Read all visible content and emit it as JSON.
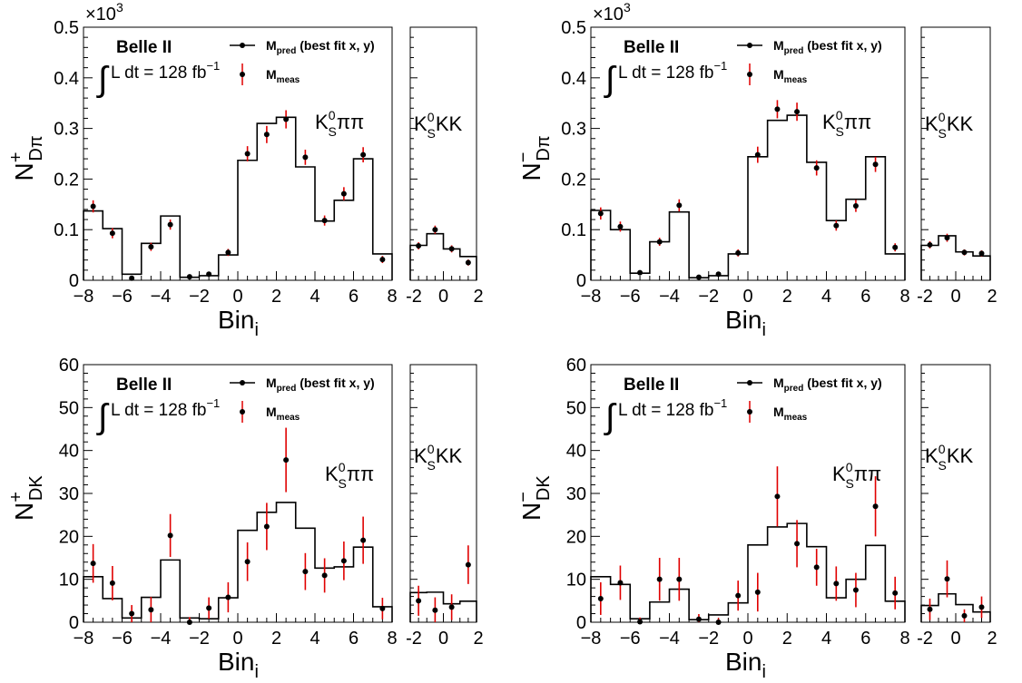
{
  "common": {
    "experiment": "Belle II",
    "lumi_text": "L dt = 128 fb",
    "lumi_sup": "−1",
    "legend_pred_main": "M",
    "legend_pred_sub": "pred",
    "legend_pred_tail": " (best fit x, y)",
    "legend_meas_main": "M",
    "legend_meas_sub": "meas",
    "xlabel_main": "Bin",
    "xlabel_sub": "i",
    "region1_label": "KS0ππ",
    "region2_label": "KS0KK",
    "exp_label_base": "×10",
    "exp_label_sup": "3"
  },
  "colors": {
    "pred": "#000000",
    "meas_bar": "#e00000",
    "meas_point": "#000000"
  },
  "chart_data": [
    {
      "type": "histogram",
      "ylabel_main": "N",
      "ylabel_sup": "+",
      "ylabel_sub": "Dπ",
      "ylim": [
        0,
        0.5
      ],
      "yticks": [
        0,
        0.1,
        0.2,
        0.3,
        0.4,
        0.5
      ],
      "ytick_labels": [
        "0",
        "0.1",
        "0.2",
        "0.3",
        "0.4",
        "0.5"
      ],
      "yunit_exp": "×10^3",
      "x_left": [
        -8,
        8
      ],
      "x_right": [
        -2,
        2
      ],
      "xticks_left": [
        -8,
        -6,
        -4,
        -2,
        0,
        2,
        4,
        6,
        8
      ],
      "xticks_right": [
        -2,
        0,
        2
      ],
      "pred_left": [
        0.137,
        0.102,
        0.012,
        0.073,
        0.127,
        0.006,
        0.009,
        0.05,
        0.237,
        0.31,
        0.322,
        0.224,
        0.117,
        0.158,
        0.24,
        0.052
      ],
      "meas_left": [
        0.146,
        0.093,
        0.004,
        0.066,
        0.11,
        0.007,
        0.012,
        0.055,
        0.25,
        0.288,
        0.318,
        0.243,
        0.118,
        0.171,
        0.248,
        0.041
      ],
      "err_left": [
        0.012,
        0.01,
        0.003,
        0.008,
        0.01,
        0.003,
        0.004,
        0.007,
        0.015,
        0.017,
        0.018,
        0.015,
        0.01,
        0.013,
        0.015,
        0.007
      ],
      "pred_right": [
        0.069,
        0.092,
        0.062,
        0.047
      ],
      "meas_right": [
        0.068,
        0.1,
        0.062,
        0.035
      ],
      "err_right": [
        0.007,
        0.008,
        0.007,
        0.006
      ]
    },
    {
      "type": "histogram",
      "ylabel_main": "N",
      "ylabel_sup": "−",
      "ylabel_sub": "Dπ",
      "ylim": [
        0,
        0.5
      ],
      "yticks": [
        0,
        0.1,
        0.2,
        0.3,
        0.4,
        0.5
      ],
      "ytick_labels": [
        "0",
        "0.1",
        "0.2",
        "0.3",
        "0.4",
        "0.5"
      ],
      "yunit_exp": "×10^3",
      "x_left": [
        -8,
        8
      ],
      "x_right": [
        -2,
        2
      ],
      "xticks_left": [
        -8,
        -6,
        -4,
        -2,
        0,
        2,
        4,
        6,
        8
      ],
      "xticks_right": [
        -2,
        0,
        2
      ],
      "pred_left": [
        0.138,
        0.1,
        0.014,
        0.076,
        0.135,
        0.005,
        0.009,
        0.052,
        0.244,
        0.316,
        0.326,
        0.233,
        0.118,
        0.16,
        0.244,
        0.052
      ],
      "meas_left": [
        0.132,
        0.106,
        0.015,
        0.076,
        0.148,
        0.006,
        0.012,
        0.054,
        0.248,
        0.338,
        0.333,
        0.222,
        0.108,
        0.147,
        0.229,
        0.065
      ],
      "err_left": [
        0.012,
        0.01,
        0.004,
        0.008,
        0.012,
        0.003,
        0.004,
        0.007,
        0.016,
        0.018,
        0.018,
        0.015,
        0.01,
        0.012,
        0.015,
        0.008
      ],
      "pred_right": [
        0.069,
        0.088,
        0.056,
        0.048
      ],
      "meas_right": [
        0.07,
        0.084,
        0.055,
        0.053
      ],
      "err_right": [
        0.007,
        0.008,
        0.006,
        0.006
      ]
    },
    {
      "type": "histogram",
      "ylabel_main": "N",
      "ylabel_sup": "+",
      "ylabel_sub": "DK",
      "ylim": [
        0,
        60
      ],
      "yticks": [
        0,
        10,
        20,
        30,
        40,
        50,
        60
      ],
      "ytick_labels": [
        "0",
        "10",
        "20",
        "30",
        "40",
        "50",
        "60"
      ],
      "x_left": [
        -8,
        8
      ],
      "x_right": [
        -2,
        2
      ],
      "xticks_left": [
        -8,
        -6,
        -4,
        -2,
        0,
        2,
        4,
        6,
        8
      ],
      "xticks_right": [
        -2,
        0,
        2
      ],
      "pred_left": [
        10.6,
        5.5,
        1.0,
        5.8,
        14.5,
        1.0,
        0.8,
        5.7,
        21.4,
        25.6,
        27.9,
        21.9,
        12.6,
        12.9,
        17.5,
        3.6
      ],
      "meas_left": [
        13.7,
        9.1,
        2.0,
        2.9,
        20.2,
        0.0,
        3.3,
        5.8,
        14.1,
        22.3,
        37.8,
        11.8,
        10.9,
        14.3,
        19.1,
        3.2
      ],
      "err_left": [
        4.5,
        4.0,
        2.0,
        3.0,
        5.0,
        1.2,
        2.5,
        3.5,
        4.5,
        5.5,
        7.5,
        4.3,
        4.0,
        4.5,
        5.5,
        2.5
      ],
      "pred_right": [
        6.9,
        7.0,
        4.3,
        4.9
      ],
      "meas_right": [
        5.0,
        2.8,
        3.5,
        13.4
      ],
      "err_right": [
        3.5,
        3.0,
        3.0,
        4.5
      ]
    },
    {
      "type": "histogram",
      "ylabel_main": "N",
      "ylabel_sup": "−",
      "ylabel_sub": "DK",
      "ylim": [
        0,
        60
      ],
      "yticks": [
        0,
        10,
        20,
        30,
        40,
        50,
        60
      ],
      "ytick_labels": [
        "0",
        "10",
        "20",
        "30",
        "40",
        "50",
        "60"
      ],
      "x_left": [
        -8,
        8
      ],
      "x_right": [
        -2,
        2
      ],
      "xticks_left": [
        -8,
        -6,
        -4,
        -2,
        0,
        2,
        4,
        6,
        8
      ],
      "xticks_right": [
        -2,
        0,
        2
      ],
      "pred_left": [
        10.6,
        8.8,
        0.8,
        4.7,
        7.7,
        0.6,
        1.7,
        4.5,
        18.0,
        22.2,
        23.0,
        17.6,
        5.7,
        10.0,
        17.9,
        4.9
      ],
      "meas_left": [
        5.5,
        9.2,
        0.1,
        10.0,
        10.0,
        0.7,
        0.0,
        6.2,
        7.0,
        29.3,
        18.3,
        12.8,
        9.0,
        7.5,
        27.0,
        6.8
      ],
      "err_left": [
        3.8,
        4.0,
        1.0,
        5.0,
        5.0,
        1.2,
        1.0,
        3.5,
        4.5,
        7.0,
        5.5,
        4.3,
        4.0,
        4.0,
        7.0,
        3.8
      ],
      "pred_right": [
        3.9,
        6.6,
        4.1,
        2.4
      ],
      "meas_right": [
        3.0,
        10.1,
        1.5,
        3.5
      ],
      "err_right": [
        2.5,
        4.3,
        1.5,
        2.5
      ]
    }
  ]
}
